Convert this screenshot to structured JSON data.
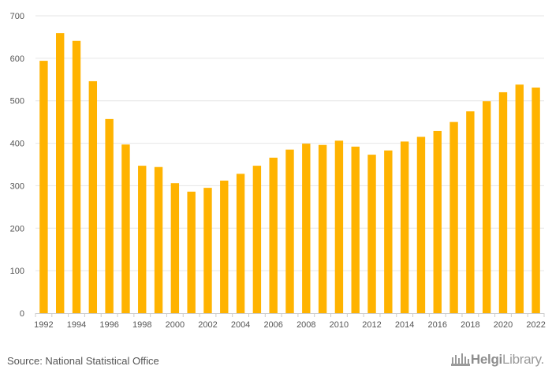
{
  "chart_data": {
    "type": "bar",
    "title": "",
    "xlabel": "",
    "ylabel": "",
    "ylim": [
      0,
      700
    ],
    "yticks": [
      "0",
      "100",
      "200",
      "300",
      "400",
      "500",
      "600",
      "700"
    ],
    "grid": true,
    "legend": "none",
    "bar_color": "#FFB300",
    "categories": [
      "1992",
      "1993",
      "1994",
      "1995",
      "1996",
      "1997",
      "1998",
      "1999",
      "2000",
      "2001",
      "2002",
      "2003",
      "2004",
      "2005",
      "2006",
      "2007",
      "2008",
      "2009",
      "2010",
      "2011",
      "2012",
      "2013",
      "2014",
      "2015",
      "2016",
      "2017",
      "2018",
      "2019",
      "2020",
      "2021",
      "2022"
    ],
    "xtick_labels": [
      "1992",
      "",
      "1994",
      "",
      "1996",
      "",
      "1998",
      "",
      "2000",
      "",
      "2002",
      "",
      "2004",
      "",
      "2006",
      "",
      "2008",
      "",
      "2010",
      "",
      "2012",
      "",
      "2014",
      "",
      "2016",
      "",
      "2018",
      "",
      "2020",
      "",
      "2022"
    ],
    "values": [
      594,
      659,
      641,
      546,
      457,
      397,
      347,
      344,
      306,
      286,
      295,
      312,
      328,
      347,
      366,
      385,
      399,
      396,
      406,
      392,
      373,
      383,
      404,
      415,
      429,
      450,
      475,
      499,
      520,
      538,
      531
    ]
  },
  "footer": {
    "source": "Source: National Statistical Office",
    "logo_name": "chart-library-logo",
    "logo_bold": "Helgi",
    "logo_regular": "Library."
  }
}
